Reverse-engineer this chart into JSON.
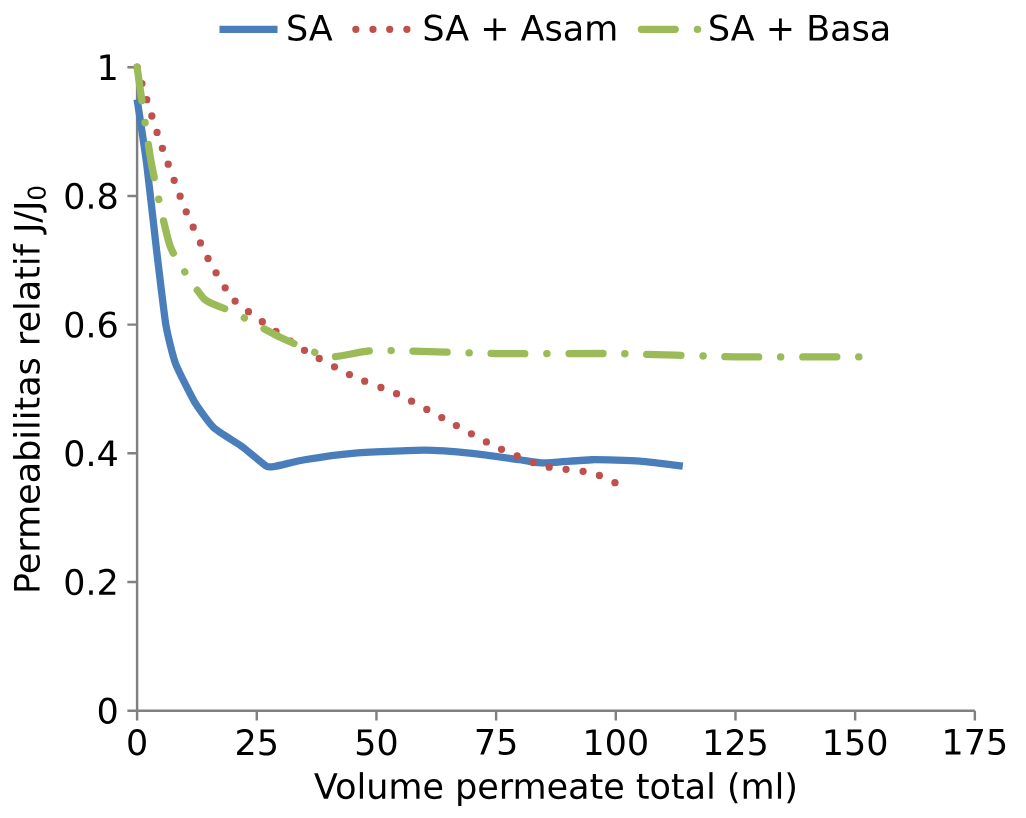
{
  "chart_data": {
    "type": "line",
    "xlabel": "Volume permeate total (ml)",
    "ylabel": "Permeabilitas relatif J/J$_{0}$",
    "xlim": [
      0,
      175
    ],
    "ylim": [
      0,
      1
    ],
    "xticks": [
      0,
      25,
      50,
      75,
      100,
      125,
      150,
      175
    ],
    "yticks": [
      0,
      0.2,
      0.4,
      0.6,
      0.8,
      1
    ],
    "grid": false,
    "legend": "top",
    "series": [
      {
        "name": "SA",
        "color": "#4a7ebb",
        "line_style": "solid",
        "x": [
          0,
          2,
          4,
          6,
          8,
          12,
          16,
          22,
          27,
          29,
          35,
          45,
          60,
          70,
          80,
          85,
          95,
          105,
          114
        ],
        "values": [
          0.95,
          0.85,
          0.72,
          0.6,
          0.54,
          0.48,
          0.44,
          0.41,
          0.38,
          0.38,
          0.39,
          0.4,
          0.405,
          0.4,
          0.39,
          0.385,
          0.39,
          0.388,
          0.38
        ]
      },
      {
        "name": "SA + Asam",
        "color": "#c0504d",
        "line_style": "dotted",
        "x": [
          0,
          2,
          5,
          10,
          15,
          20,
          27,
          35,
          45,
          55,
          65,
          75,
          85,
          95,
          101
        ],
        "values": [
          1,
          0.95,
          0.88,
          0.78,
          0.7,
          0.64,
          0.6,
          0.56,
          0.52,
          0.49,
          0.45,
          0.41,
          0.38,
          0.37,
          0.35
        ]
      },
      {
        "name": "SA + Basa",
        "color": "#9bbb59",
        "line_style": "dashdot",
        "x": [
          0,
          3,
          7,
          14,
          20,
          30,
          40,
          50,
          75,
          100,
          125,
          151
        ],
        "values": [
          1,
          0.85,
          0.72,
          0.64,
          0.62,
          0.58,
          0.55,
          0.56,
          0.555,
          0.555,
          0.55,
          0.55
        ]
      }
    ]
  }
}
